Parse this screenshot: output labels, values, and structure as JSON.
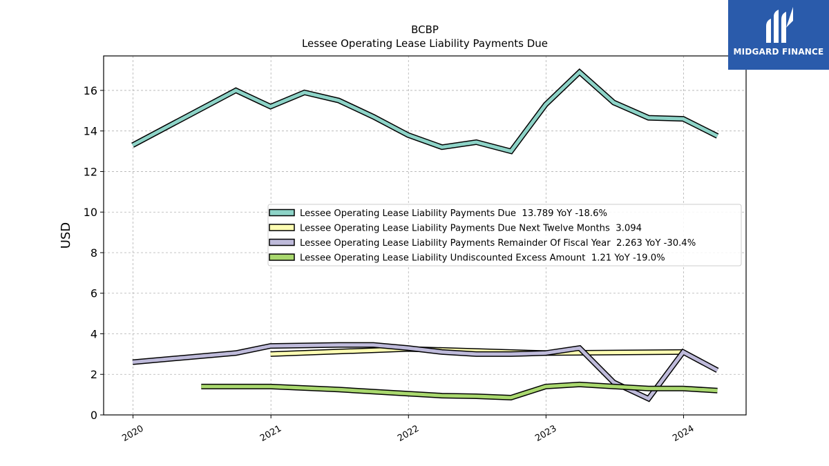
{
  "brand": {
    "logo_text": "MIDGARD FINANCE",
    "background_color": "#2a5bab"
  },
  "chart_data": {
    "type": "line",
    "title": "BCBP",
    "subtitle": "Lessee Operating Lease Liability Payments Due",
    "xlabel": "",
    "ylabel": "USD",
    "xlim": [
      "2019-10-15",
      "2024-06-15"
    ],
    "ylim": [
      0,
      17.7
    ],
    "x_ticks": [
      {
        "label": "2020",
        "date": "2020-01-01"
      },
      {
        "label": "2021",
        "date": "2021-01-01"
      },
      {
        "label": "2022",
        "date": "2022-01-01"
      },
      {
        "label": "2023",
        "date": "2023-01-01"
      },
      {
        "label": "2024",
        "date": "2024-01-01"
      }
    ],
    "y_ticks": [
      0,
      2,
      4,
      6,
      8,
      10,
      12,
      14,
      16
    ],
    "grid": true,
    "legend_position": "center-right",
    "series": [
      {
        "name": "Lessee Operating Lease Liability Payments Due",
        "legend_label": "Lessee Operating Lease Liability Payments Due  13.789 YoY -18.6%",
        "color": "#8dd3c7",
        "points": [
          [
            "2019-12-31",
            13.3
          ],
          [
            "2020-09-30",
            16.0
          ],
          [
            "2020-12-31",
            15.2
          ],
          [
            "2021-03-31",
            15.9
          ],
          [
            "2021-06-30",
            15.5
          ],
          [
            "2021-09-30",
            14.7
          ],
          [
            "2021-12-31",
            13.8
          ],
          [
            "2022-03-31",
            13.2
          ],
          [
            "2022-06-30",
            13.45
          ],
          [
            "2022-09-30",
            13.0
          ],
          [
            "2022-12-31",
            15.3
          ],
          [
            "2023-03-31",
            16.9
          ],
          [
            "2023-06-30",
            15.4
          ],
          [
            "2023-09-30",
            14.65
          ],
          [
            "2023-12-31",
            14.6
          ],
          [
            "2024-03-31",
            13.75
          ]
        ]
      },
      {
        "name": "Lessee Operating Lease Liability Payments Due Next Twelve Months",
        "legend_label": "Lessee Operating Lease Liability Payments Due Next Twelve Months  3.094",
        "color": "#ffffb3",
        "points": [
          [
            "2020-12-31",
            3.0
          ],
          [
            "2021-12-31",
            3.25
          ],
          [
            "2022-12-31",
            3.05
          ],
          [
            "2023-12-31",
            3.1
          ]
        ]
      },
      {
        "name": "Lessee Operating Lease Liability Payments Remainder Of Fiscal Year",
        "legend_label": "Lessee Operating Lease Liability Payments Remainder Of Fiscal Year  2.263 YoY -30.4%",
        "color": "#bebada",
        "points": [
          [
            "2019-12-31",
            2.6
          ],
          [
            "2020-09-30",
            3.05
          ],
          [
            "2020-12-31",
            3.4
          ],
          [
            "2021-06-30",
            3.45
          ],
          [
            "2021-09-30",
            3.45
          ],
          [
            "2021-12-31",
            3.3
          ],
          [
            "2022-03-31",
            3.1
          ],
          [
            "2022-06-30",
            3.0
          ],
          [
            "2022-09-30",
            3.0
          ],
          [
            "2022-12-31",
            3.05
          ],
          [
            "2023-03-31",
            3.3
          ],
          [
            "2023-06-30",
            1.6
          ],
          [
            "2023-09-30",
            0.8
          ],
          [
            "2023-12-31",
            3.1
          ],
          [
            "2024-03-31",
            2.2
          ]
        ]
      },
      {
        "name": "Lessee Operating Lease Liability Undiscounted Excess Amount",
        "legend_label": "Lessee Operating Lease Liability Undiscounted Excess Amount  1.21 YoY -19.0%",
        "color": "#a9d86e",
        "points": [
          [
            "2020-06-30",
            1.4
          ],
          [
            "2020-12-31",
            1.4
          ],
          [
            "2021-06-30",
            1.25
          ],
          [
            "2021-12-31",
            1.05
          ],
          [
            "2022-03-31",
            0.95
          ],
          [
            "2022-06-30",
            0.92
          ],
          [
            "2022-09-30",
            0.85
          ],
          [
            "2022-12-31",
            1.4
          ],
          [
            "2023-03-31",
            1.5
          ],
          [
            "2023-06-30",
            1.4
          ],
          [
            "2023-09-30",
            1.3
          ],
          [
            "2023-12-31",
            1.3
          ],
          [
            "2024-03-31",
            1.2
          ]
        ]
      }
    ]
  }
}
